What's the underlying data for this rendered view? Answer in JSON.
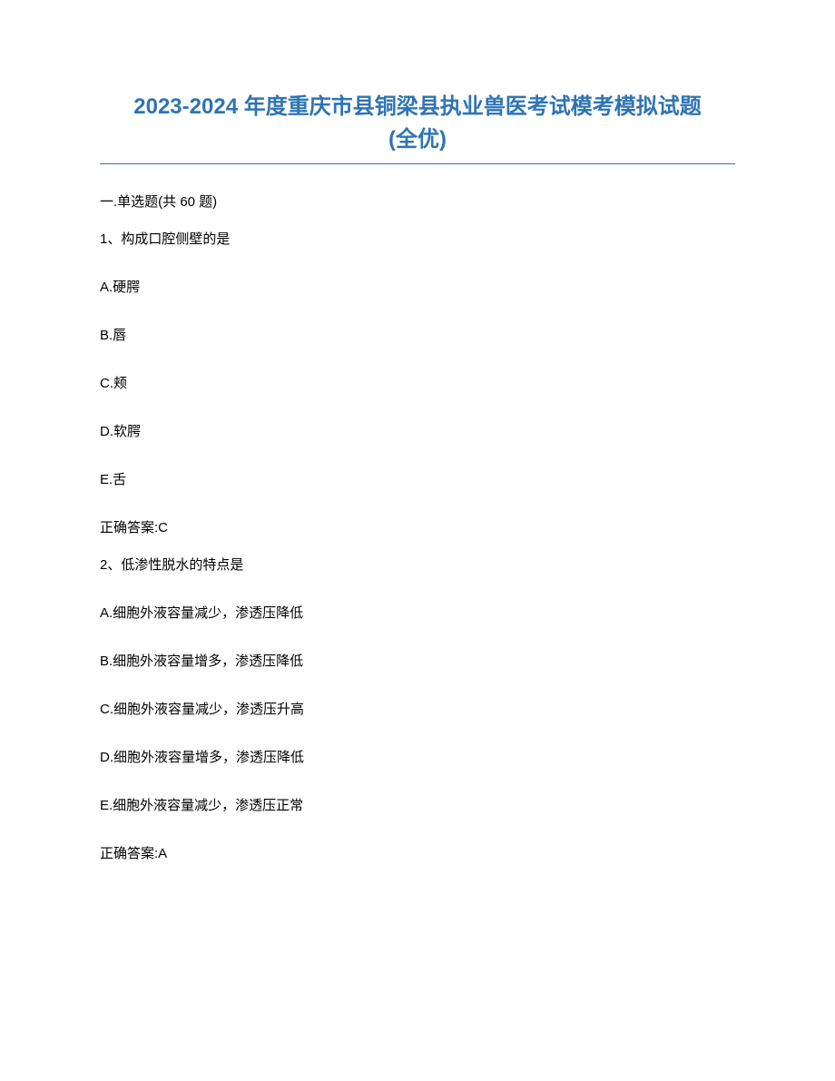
{
  "title_line1": "2023-2024 年度重庆市县铜梁县执业兽医考试模考模拟试题",
  "title_line2": "(全优)",
  "section_header": "一.单选题(共 60 题)",
  "question1": {
    "text": "1、构成口腔侧壁的是",
    "options": {
      "A": "A.硬腭",
      "B": "B.唇",
      "C": "C.颊",
      "D": "D.软腭",
      "E": "E.舌"
    },
    "answer": "正确答案:C"
  },
  "question2": {
    "text": "2、低渗性脱水的特点是",
    "options": {
      "A": "A.细胞外液容量减少，渗透压降低",
      "B": "B.细胞外液容量增多，渗透压降低",
      "C": "C.细胞外液容量减少，渗透压升高",
      "D": "D.细胞外液容量增多，渗透压降低",
      "E": "E.细胞外液容量减少，渗透压正常"
    },
    "answer": "正确答案:A"
  },
  "colors": {
    "title_color": "#2e74b5",
    "text_color": "#000000",
    "background": "#ffffff",
    "underline_color": "#2e74b5"
  },
  "typography": {
    "title_fontsize": 24,
    "body_fontsize": 15,
    "title_font": "Microsoft YaHei",
    "body_font": "Microsoft YaHei"
  }
}
